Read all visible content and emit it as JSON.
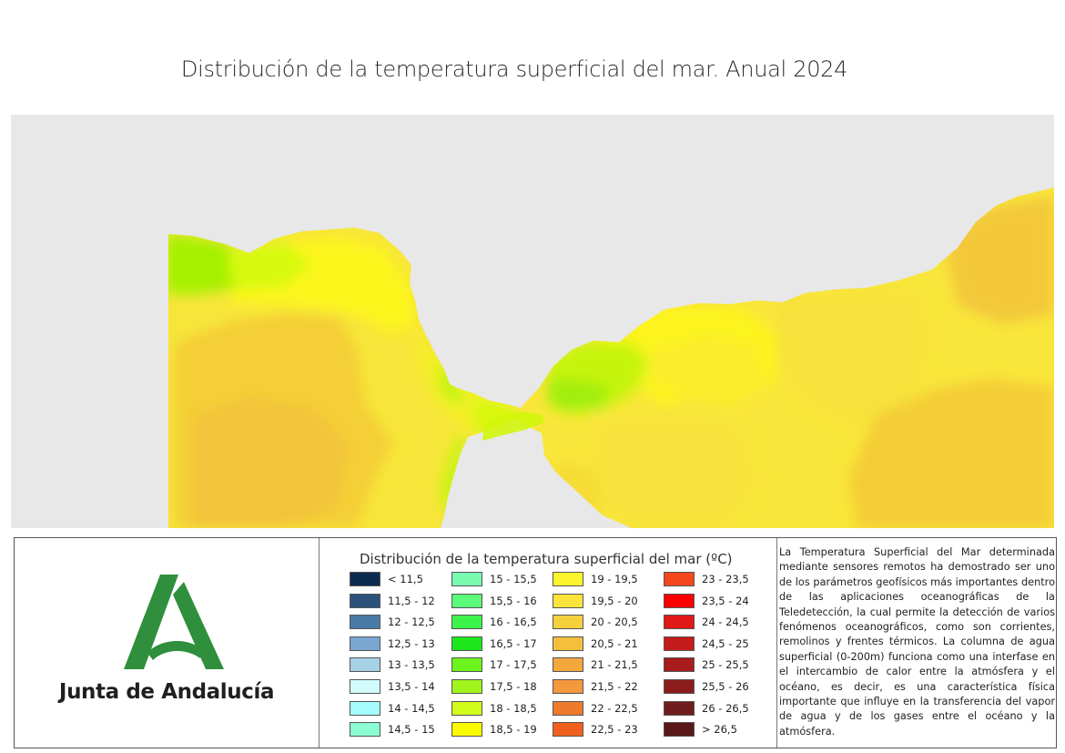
{
  "title": "Distribución de la temperatura superficial del mar. Anual 2024",
  "map": {
    "background_color": "#e8e8e8",
    "description_colors": {
      "land": "#e8e8e8",
      "sea_cool": "#9ef500",
      "sea_mid": "#fcfb00",
      "sea_warm": "#f4d02c"
    }
  },
  "logo": {
    "text": "Junta de Andalucía",
    "color": "#2f8f3c"
  },
  "legend": {
    "title": "Distribución de la temperatura superficial del mar (ºC)",
    "columns": [
      [
        {
          "label": "< 11,5",
          "color": "#0d2b4f"
        },
        {
          "label": "11,5 - 12",
          "color": "#2b527a"
        },
        {
          "label": "12 - 12,5",
          "color": "#4a7aa6"
        },
        {
          "label": "12,5 - 13",
          "color": "#7aa6d2"
        },
        {
          "label": "13 - 13,5",
          "color": "#a6d2e8"
        },
        {
          "label": "13,5 - 14",
          "color": "#d2fcfc"
        },
        {
          "label": "14 - 14,5",
          "color": "#a6fcfc"
        },
        {
          "label": "14,5 - 15",
          "color": "#8cfcd2"
        }
      ],
      [
        {
          "label": "15 - 15,5",
          "color": "#7afcb0"
        },
        {
          "label": "15,5 - 16",
          "color": "#5afc7a"
        },
        {
          "label": "16 - 16,5",
          "color": "#3cf44a"
        },
        {
          "label": "16,5 - 17",
          "color": "#1ce81c"
        },
        {
          "label": "17 - 17,5",
          "color": "#6cf41c"
        },
        {
          "label": "17,5 - 18",
          "color": "#a0f41c"
        },
        {
          "label": "18 - 18,5",
          "color": "#d2fc1c"
        },
        {
          "label": "18,5 - 19",
          "color": "#fcfc00"
        }
      ],
      [
        {
          "label": "19 - 19,5",
          "color": "#fcf42c"
        },
        {
          "label": "19,5 - 20",
          "color": "#fce43c"
        },
        {
          "label": "20 - 20,5",
          "color": "#f4d03c"
        },
        {
          "label": "20,5 - 21",
          "color": "#f4c03c"
        },
        {
          "label": "21 - 21,5",
          "color": "#f4a83c"
        },
        {
          "label": "21,5 - 22",
          "color": "#f4983c"
        },
        {
          "label": "22 - 22,5",
          "color": "#ec7c2c"
        },
        {
          "label": "22,5 - 23",
          "color": "#f0601c"
        }
      ],
      [
        {
          "label": "23 - 23,5",
          "color": "#f4481c"
        },
        {
          "label": "23,5 - 24",
          "color": "#fc0000"
        },
        {
          "label": "24 - 24,5",
          "color": "#e01818"
        },
        {
          "label": "24,5 - 25",
          "color": "#c41c1c"
        },
        {
          "label": "25 - 25,5",
          "color": "#a81c1c"
        },
        {
          "label": "25,5 - 26",
          "color": "#8c1c1c"
        },
        {
          "label": "26 - 26,5",
          "color": "#701c1c"
        },
        {
          "label": "> 26,5",
          "color": "#5a1818"
        }
      ]
    ]
  },
  "description": "La Temperatura Superficial del Mar determinada mediante sensores remotos ha demostrado ser uno de los parámetros geofísicos más importantes dentro de las aplicaciones oceanográficas de la Teledetección, la cual permite la detección de varios fenómenos oceanográficos, como son corrientes, remolinos y frentes térmicos. La columna de agua superficial (0-200m) funciona como una interfase en el intercambio de calor entre la atmósfera y el océano, es decir, es una característica física importante que influye en la transferencia del vapor de agua y de los gases entre el océano y la atmósfera."
}
